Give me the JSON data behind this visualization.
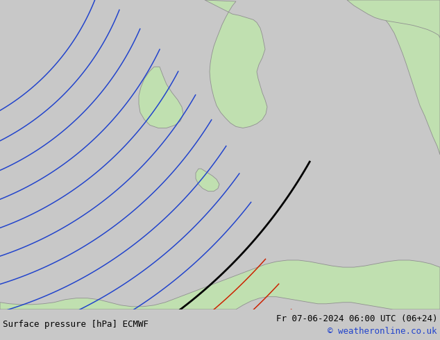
{
  "title": "Surface pressure [hPa] ECMWF",
  "date_str": "Fr 07-06-2024 06:00 UTC (06+24)",
  "copyright": "© weatheronline.co.uk",
  "bg_color": "#d0d0dc",
  "land_color": "#c0e0b0",
  "coast_color": "#909090",
  "isobar_blue": "#2244cc",
  "isobar_black": "#000000",
  "isobar_red": "#cc2200",
  "figsize": [
    6.34,
    4.9
  ],
  "dpi": 100
}
